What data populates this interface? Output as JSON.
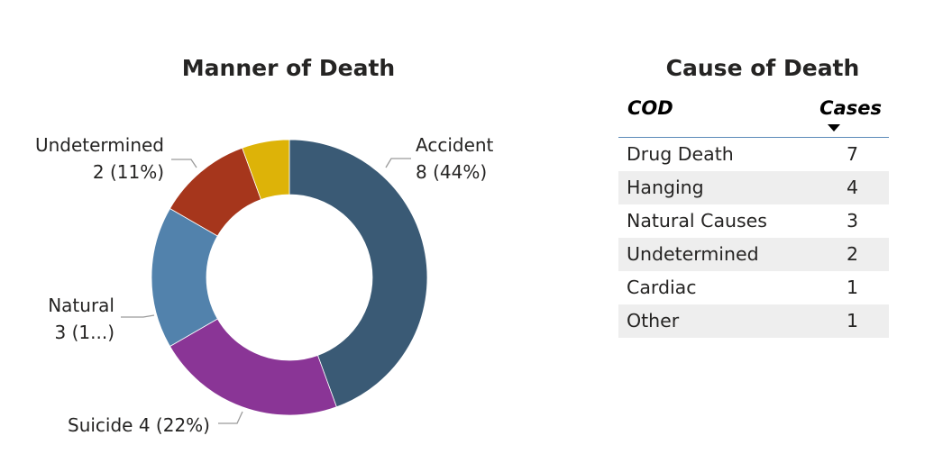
{
  "donut": {
    "title": "Manner of Death",
    "labels": {
      "accident": [
        "Accident",
        "8 (44%)"
      ],
      "undetermined": [
        "Undetermined",
        "2 (11%)"
      ],
      "natural": [
        "Natural",
        "3 (1...)"
      ],
      "suicide": [
        "Suicide 4 (22%)"
      ]
    }
  },
  "table": {
    "title": "Cause of Death",
    "headers": {
      "cod": "COD",
      "cases": "Cases"
    },
    "sort_icon": "sort-descending-icon",
    "rows": [
      {
        "cod": "Drug Death",
        "cases": "7"
      },
      {
        "cod": "Hanging",
        "cases": "4"
      },
      {
        "cod": "Natural Causes",
        "cases": "3"
      },
      {
        "cod": "Undetermined",
        "cases": "2"
      },
      {
        "cod": "Cardiac",
        "cases": "1"
      },
      {
        "cod": "Other",
        "cases": "1"
      }
    ]
  },
  "chart_data": [
    {
      "type": "pie",
      "title": "Manner of Death",
      "donut": true,
      "categories": [
        "Accident",
        "Suicide",
        "Natural",
        "Undetermined",
        ""
      ],
      "values": [
        8,
        4,
        3,
        2,
        1
      ],
      "colors": [
        "#3a5a75",
        "#8a3596",
        "#5282ac",
        "#a6361c",
        "#ddb308"
      ]
    },
    {
      "type": "table",
      "title": "Cause of Death",
      "columns": [
        "COD",
        "Cases"
      ],
      "rows": [
        [
          "Drug Death",
          7
        ],
        [
          "Hanging",
          4
        ],
        [
          "Natural Causes",
          3
        ],
        [
          "Undetermined",
          2
        ],
        [
          "Cardiac",
          1
        ],
        [
          "Other",
          1
        ]
      ]
    }
  ]
}
